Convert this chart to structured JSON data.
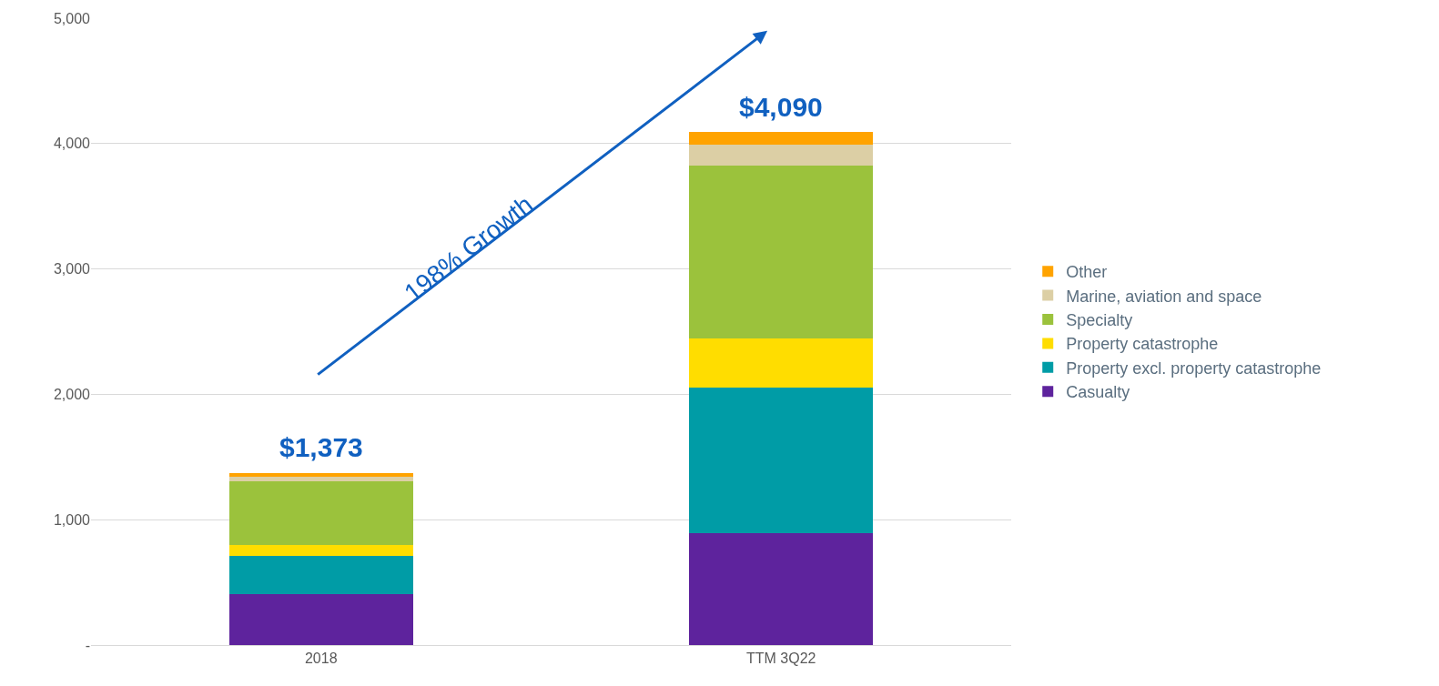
{
  "chart_data": {
    "type": "bar",
    "stacked": true,
    "categories": [
      "2018",
      "TTM 3Q22"
    ],
    "series": [
      {
        "name": "Casualty",
        "color": "#5e239d",
        "values": [
          406,
          891
        ]
      },
      {
        "name": "Property excl. property catastrophe",
        "color": "#009ca6",
        "values": [
          304,
          1160
        ]
      },
      {
        "name": "Property catastrophe",
        "color": "#ffdd00",
        "values": [
          87,
          398
        ]
      },
      {
        "name": "Specialty",
        "color": "#9bc23c",
        "values": [
          507,
          1377
        ]
      },
      {
        "name": "Marine, aviation and space",
        "color": "#dccfa5",
        "values": [
          37,
          167
        ]
      },
      {
        "name": "Other",
        "color": "#ffa300",
        "values": [
          32,
          97
        ]
      }
    ],
    "totals": [
      "$1,373",
      "$4,090"
    ],
    "annotations": [
      "198% Growth"
    ],
    "ylim": [
      0,
      5000
    ],
    "yticks": [
      {
        "value": 0,
        "label": "-"
      },
      {
        "value": 1000,
        "label": "1,000"
      },
      {
        "value": 2000,
        "label": "2,000"
      },
      {
        "value": 3000,
        "label": "3,000"
      },
      {
        "value": 4000,
        "label": "4,000"
      },
      {
        "value": 5000,
        "label": "5,000"
      }
    ],
    "grid": "y",
    "legend": "right"
  }
}
